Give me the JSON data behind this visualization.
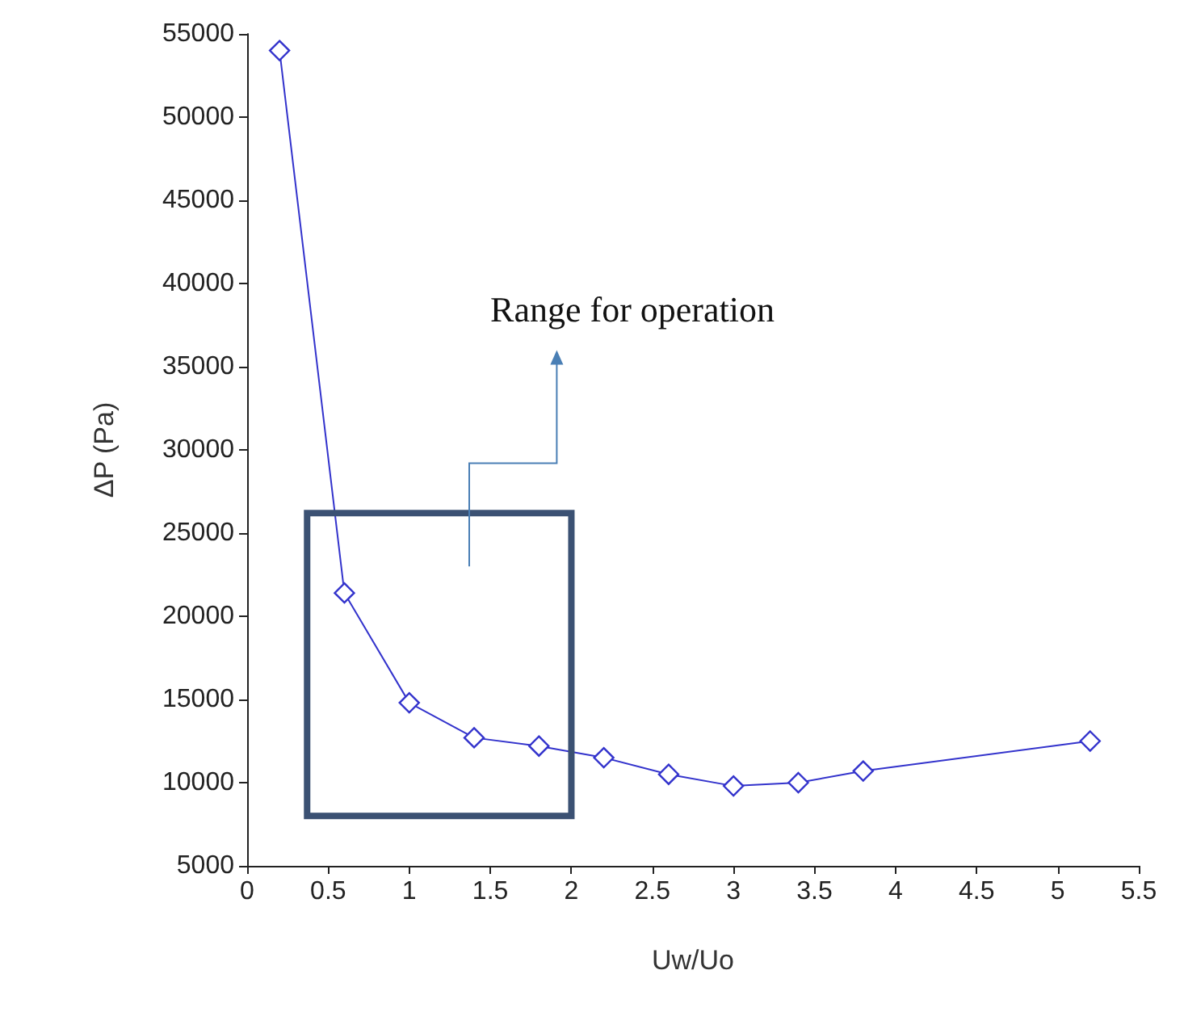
{
  "chart_data": {
    "type": "line",
    "xlabel": "Uw/Uo",
    "ylabel": "ΔP (Pa)",
    "x": [
      0.2,
      0.6,
      1.0,
      1.4,
      1.8,
      2.2,
      2.6,
      3.0,
      3.4,
      3.8,
      5.2
    ],
    "series": [
      {
        "color": "#3333cc",
        "values": [
          54000,
          21400,
          14800,
          12700,
          12200,
          11500,
          10500,
          9800,
          10000,
          10700,
          12500
        ]
      }
    ],
    "xlim": [
      0,
      5.5
    ],
    "xticks": [
      0,
      0.5,
      1,
      1.5,
      2,
      2.5,
      3,
      3.5,
      4,
      4.5,
      5,
      5.5
    ],
    "ylim": [
      5000,
      55000
    ],
    "yticks": [
      5000,
      10000,
      15000,
      20000,
      25000,
      30000,
      35000,
      40000,
      45000,
      50000,
      55000
    ],
    "grid": false,
    "marker": "diamond",
    "line_style": "solid",
    "annotations": [
      "Range for operation"
    ]
  }
}
